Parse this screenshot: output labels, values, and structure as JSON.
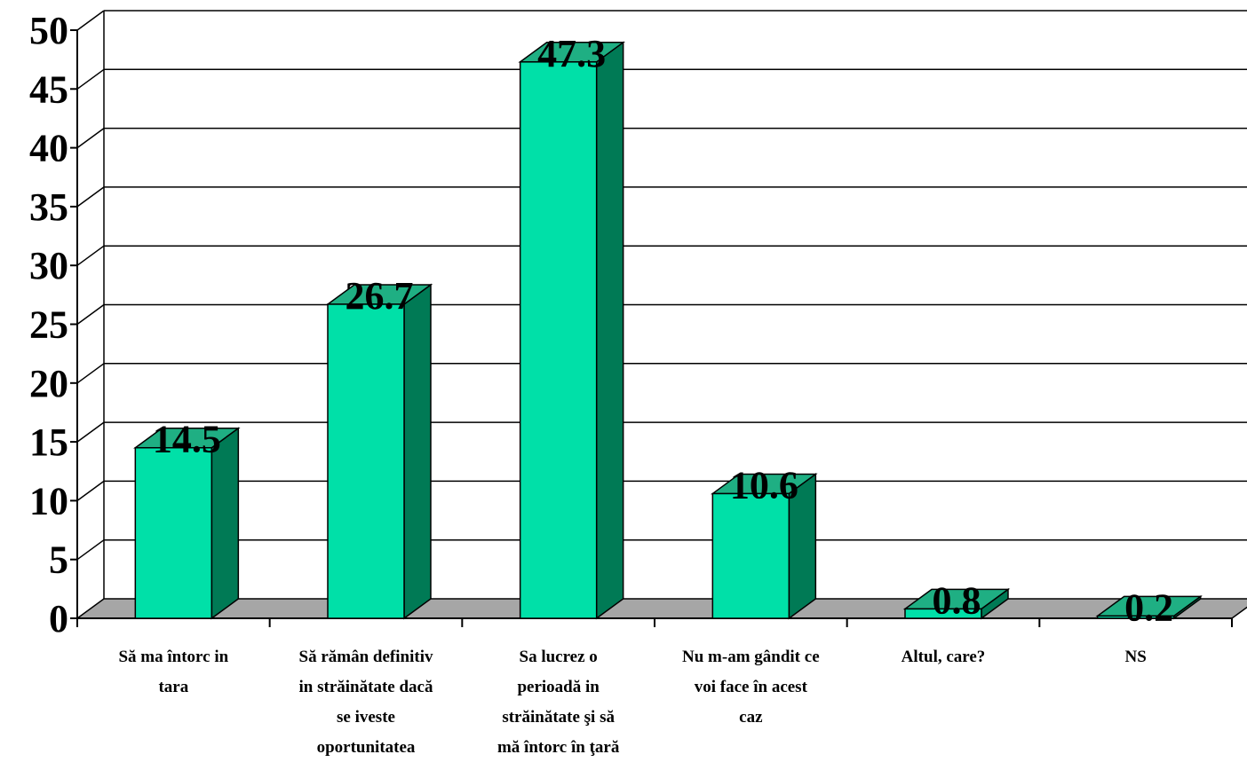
{
  "chart_data": {
    "type": "bar",
    "title": "",
    "xlabel": "",
    "ylabel": "",
    "categories": [
      [
        "Să ma întorc in",
        "tara"
      ],
      [
        "Să rămân definitiv",
        "in străinătate dacă",
        "se iveste",
        "oportunitatea"
      ],
      [
        "Sa lucrez o",
        "perioadă in",
        "străinătate şi să",
        "mă întorc în ţară"
      ],
      [
        "Nu m-am gândit ce",
        "voi face în acest",
        "caz"
      ],
      [
        "Altul, care?"
      ],
      [
        "NS"
      ]
    ],
    "values": [
      14.5,
      26.7,
      47.3,
      10.6,
      0.8,
      0.2
    ],
    "value_labels": [
      "14.5",
      "26.7",
      "47.3",
      "10.6",
      "0.8",
      "0.2"
    ],
    "ylim": [
      0,
      50
    ],
    "yticks": [
      "0",
      "5",
      "10",
      "15",
      "20",
      "25",
      "30",
      "35",
      "40",
      "45",
      "50"
    ],
    "grid": true,
    "legend": "none",
    "style": "3d",
    "colors": {
      "bar_front": "#00E0A8",
      "bar_side": "#007A55",
      "bar_top": "#1FAF83",
      "floor": "#A6A6A6",
      "grid": "#000000"
    }
  }
}
